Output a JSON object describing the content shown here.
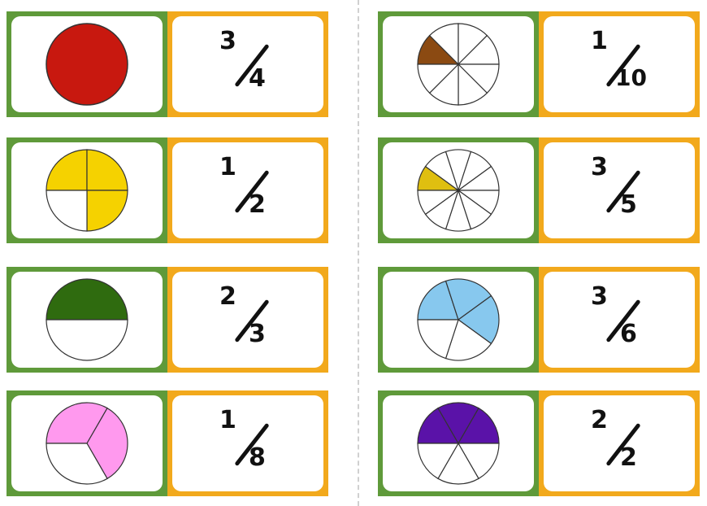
{
  "colors": {
    "picture_frame": "#5f9a3a",
    "fraction_frame": "#f2a91c",
    "pie_stroke": "#333333",
    "pie_empty": "#ffffff"
  },
  "dominoes": [
    {
      "picture": {
        "total": 1,
        "filled": 1,
        "color": "#c8180f"
      },
      "label": {
        "numerator": "3",
        "denominator": "4"
      }
    },
    {
      "picture": {
        "total": 4,
        "filled": 3,
        "color": "#f5d200"
      },
      "label": {
        "numerator": "1",
        "denominator": "2"
      }
    },
    {
      "picture": {
        "total": 2,
        "filled": 1,
        "color": "#2f6b0f"
      },
      "label": {
        "numerator": "2",
        "denominator": "3"
      }
    },
    {
      "picture": {
        "total": 3,
        "filled": 2,
        "color": "#ff99ee"
      },
      "label": {
        "numerator": "1",
        "denominator": "8"
      }
    },
    {
      "picture": {
        "total": 8,
        "filled": 1,
        "color": "#8b4a12"
      },
      "label": {
        "numerator": "1",
        "denominator": "10"
      }
    },
    {
      "picture": {
        "total": 10,
        "filled": 1,
        "color": "#dfbf10"
      },
      "label": {
        "numerator": "3",
        "denominator": "5"
      }
    },
    {
      "picture": {
        "total": 5,
        "filled": 3,
        "color": "#87c8ee"
      },
      "label": {
        "numerator": "3",
        "denominator": "6"
      }
    },
    {
      "picture": {
        "total": 6,
        "filled": 3,
        "color": "#5a12a8"
      },
      "label": {
        "numerator": "2",
        "denominator": "2"
      }
    }
  ]
}
